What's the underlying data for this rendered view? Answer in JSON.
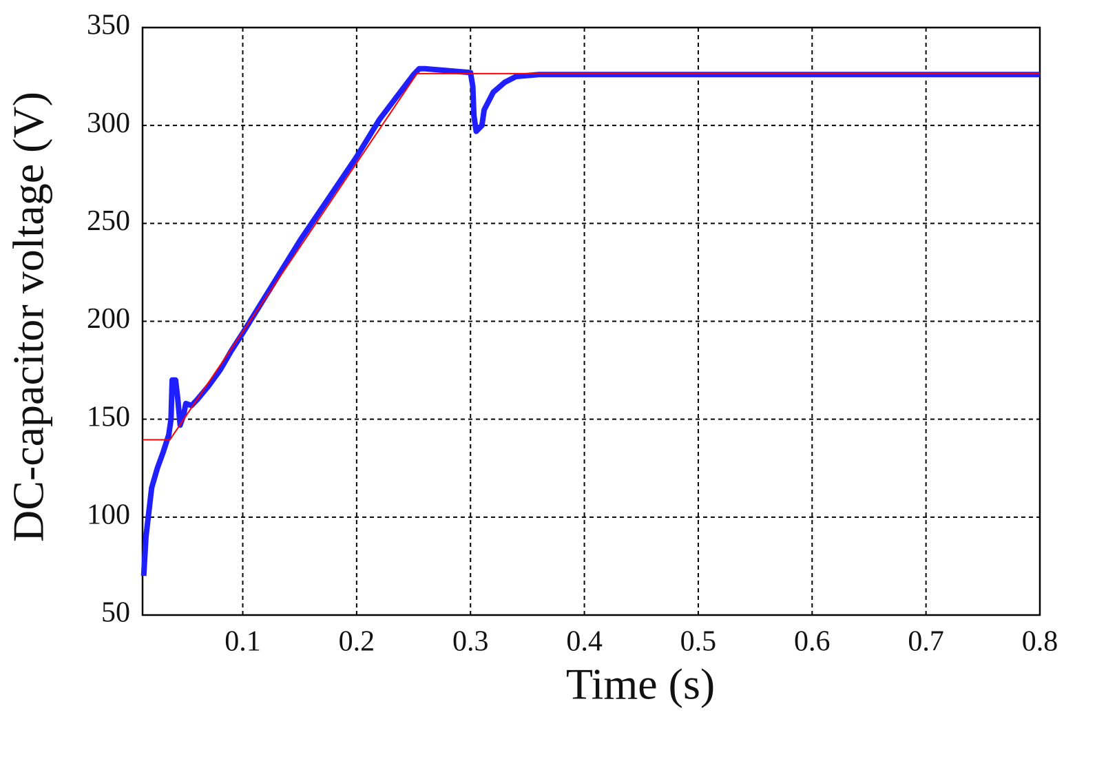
{
  "chart_data": {
    "type": "line",
    "xlabel": "Time (s)",
    "ylabel": "DC-capacitor voltage (V)",
    "xlim": [
      0.012,
      0.8
    ],
    "xticks": [
      0.1,
      0.2,
      0.3,
      0.4,
      0.5,
      0.6,
      0.7,
      0.8
    ],
    "ylim": [
      50,
      350
    ],
    "yticks": [
      50,
      100,
      150,
      200,
      250,
      300,
      350
    ],
    "grid": true,
    "series": [
      {
        "color": "#1f1fff",
        "width": 8,
        "x": [
          0.013,
          0.015,
          0.02,
          0.025,
          0.03,
          0.035,
          0.037,
          0.038,
          0.041,
          0.043,
          0.045,
          0.048,
          0.05,
          0.055,
          0.06,
          0.07,
          0.08,
          0.09,
          0.1,
          0.15,
          0.2,
          0.22,
          0.25,
          0.255,
          0.26,
          0.3,
          0.302,
          0.303,
          0.305,
          0.31,
          0.312,
          0.32,
          0.33,
          0.34,
          0.36,
          0.8
        ],
        "values": [
          70,
          90,
          115,
          125,
          133,
          142,
          150,
          170,
          170,
          160,
          147,
          152,
          158,
          157,
          160,
          167,
          175,
          185,
          194,
          241,
          284,
          303,
          326,
          329,
          329,
          327,
          320,
          305,
          297,
          300,
          308,
          317,
          322,
          325,
          326,
          326
        ]
      },
      {
        "color": "#ff0000",
        "width": 2,
        "x": [
          0.012,
          0.036,
          0.253,
          0.8
        ],
        "values": [
          139.5,
          139.5,
          326.5,
          326.5
        ]
      }
    ]
  }
}
